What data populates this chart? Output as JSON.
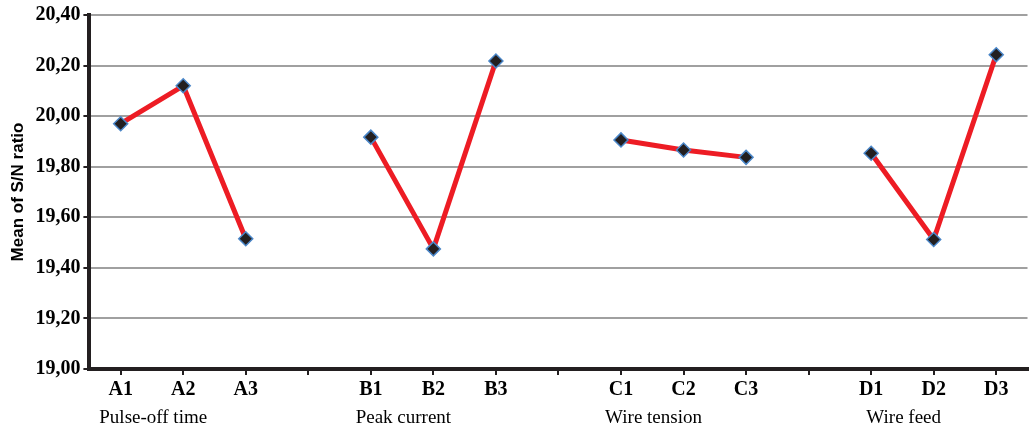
{
  "chart_data": {
    "type": "line",
    "ylabel": "Mean of S/N ratio",
    "categories": [
      "A1",
      "A2",
      "A3",
      null,
      "B1",
      "B2",
      "B3",
      null,
      "C1",
      "C2",
      "C3",
      null,
      "D1",
      "D2",
      "D3"
    ],
    "series": [
      {
        "color": "#ed1c24",
        "values": [
          19.97,
          20.12,
          19.515,
          null,
          19.917,
          19.475,
          20.218,
          null,
          19.906,
          19.866,
          19.837,
          null,
          19.853,
          19.512,
          20.243
        ]
      }
    ],
    "ylim": [
      19.0,
      20.4
    ],
    "yticks": [
      {
        "value": 19.0,
        "label": "19,00"
      },
      {
        "value": 19.2,
        "label": "19,20"
      },
      {
        "value": 19.4,
        "label": "19,40"
      },
      {
        "value": 19.6,
        "label": "19,60"
      },
      {
        "value": 19.8,
        "label": "19,80"
      },
      {
        "value": 20.0,
        "label": "20,00"
      },
      {
        "value": 20.2,
        "label": "20,20"
      },
      {
        "value": 20.4,
        "label": "20,40"
      }
    ],
    "grid": "y",
    "legend": false,
    "marker": "diamond",
    "line_style": "solid",
    "annotations": [
      "Pulse-off time",
      "Peak current",
      "Wire tension",
      "Wire feed"
    ]
  }
}
